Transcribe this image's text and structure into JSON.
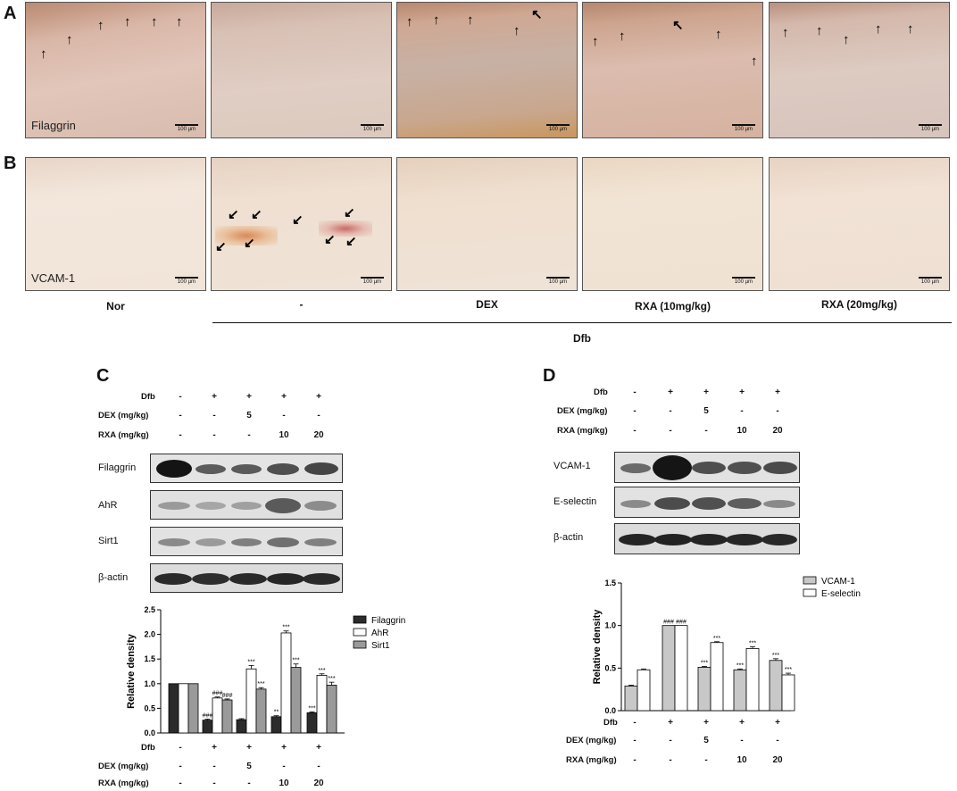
{
  "panel_letters": {
    "a": "A",
    "b": "B",
    "c": "C",
    "d": "D"
  },
  "panel_a": {
    "stain_label": "Filaggrin",
    "scale_label": "100 µm"
  },
  "panel_b": {
    "stain_label": "VCAM-1",
    "scale_label": "100 µm"
  },
  "groups": {
    "nor": "Nor",
    "vehicle": "-",
    "dex": "DEX",
    "rxa10": "RXA (10mg/kg)",
    "rxa20": "RXA (20mg/kg)",
    "dfb": "Dfb"
  },
  "treatment_table": {
    "rows": [
      {
        "label": "Dfb",
        "cells": [
          "-",
          "+",
          "+",
          "+",
          "+"
        ]
      },
      {
        "label": "DEX (mg/kg)",
        "cells": [
          "-",
          "-",
          "5",
          "-",
          "-"
        ]
      },
      {
        "label": "RXA (mg/kg)",
        "cells": [
          "-",
          "-",
          "-",
          "10",
          "20"
        ]
      }
    ]
  },
  "panel_c": {
    "blots": [
      "Filaggrin",
      "AhR",
      "Sirt1",
      "β-actin"
    ]
  },
  "panel_d": {
    "blots": [
      "VCAM-1",
      "E-selectin",
      "β-actin"
    ]
  },
  "colors": {
    "filaggrin": "#2b2b2b",
    "ahr": "#ffffff",
    "sirt1": "#9a9a9a",
    "vcam1": "#c8c8c8",
    "eselectin": "#ffffff",
    "tissue_a": "#d8b4a6",
    "tissue_b": "#f1e3d6"
  },
  "chart_data": [
    {
      "type": "bar",
      "panel": "C",
      "ylabel": "Relative density",
      "ylim": [
        0,
        2.5
      ],
      "yticks": [
        "0.0",
        "0.5",
        "1.0",
        "1.5",
        "2.0",
        "2.5"
      ],
      "series": [
        {
          "name": "Filaggrin",
          "values": [
            1.0,
            0.26,
            0.27,
            0.33,
            0.41
          ],
          "errors": [
            0,
            0.02,
            0.02,
            0.02,
            0.02
          ],
          "marks": [
            "",
            "###",
            "",
            "**",
            "***"
          ]
        },
        {
          "name": "AhR",
          "values": [
            1.0,
            0.71,
            1.3,
            2.03,
            1.17
          ],
          "errors": [
            0,
            0.02,
            0.07,
            0.04,
            0.03
          ],
          "marks": [
            "",
            "###",
            "***",
            "***",
            "***"
          ]
        },
        {
          "name": "Sirt1",
          "values": [
            1.0,
            0.67,
            0.89,
            1.33,
            0.97
          ],
          "errors": [
            0,
            0.02,
            0.03,
            0.07,
            0.06
          ],
          "marks": [
            "",
            "###",
            "***",
            "***",
            "***"
          ]
        }
      ]
    },
    {
      "type": "bar",
      "panel": "D",
      "ylabel": "Relative density",
      "ylim": [
        0,
        1.5
      ],
      "yticks": [
        "0.0",
        "0.5",
        "1.0",
        "1.5"
      ],
      "series": [
        {
          "name": "VCAM-1",
          "values": [
            0.29,
            1.0,
            0.51,
            0.48,
            0.59
          ],
          "errors": [
            0.01,
            0,
            0.01,
            0.01,
            0.02
          ],
          "marks": [
            "",
            "###",
            "***",
            "***",
            "***"
          ]
        },
        {
          "name": "E-selectin",
          "values": [
            0.48,
            1.0,
            0.8,
            0.73,
            0.42
          ],
          "errors": [
            0.01,
            0,
            0.01,
            0.02,
            0.02
          ],
          "marks": [
            "",
            "###",
            "***",
            "***",
            "***"
          ]
        }
      ]
    }
  ]
}
